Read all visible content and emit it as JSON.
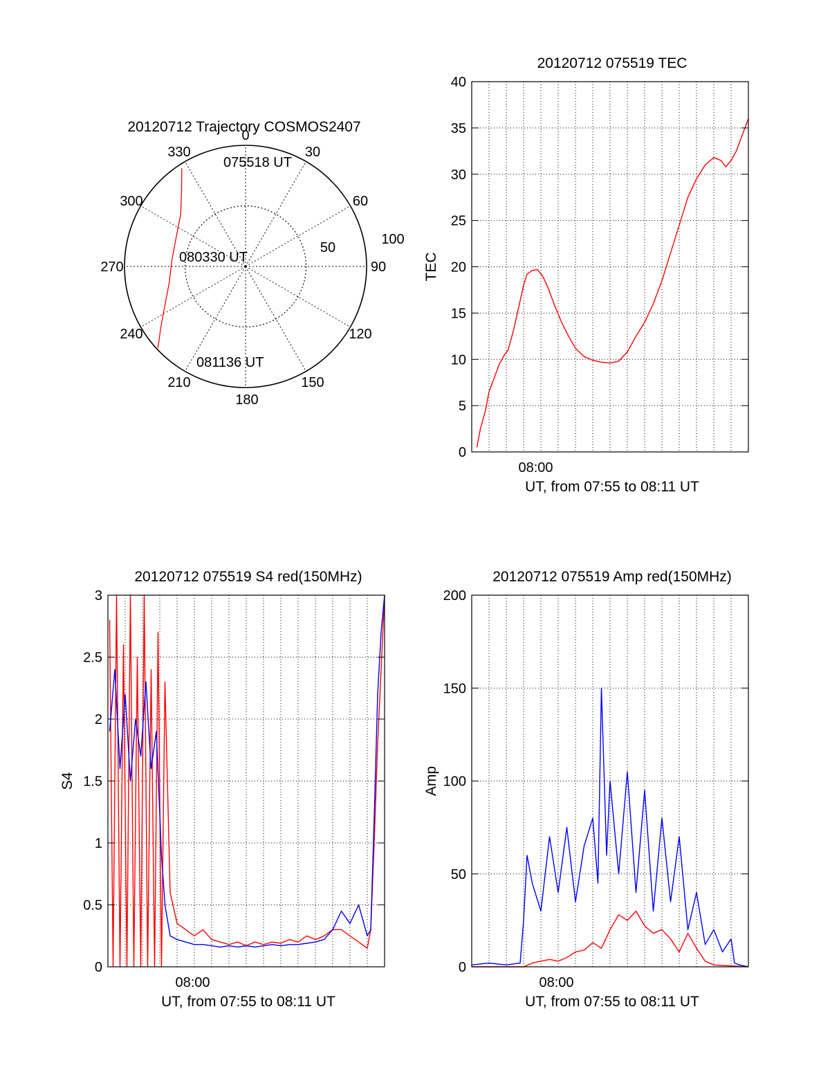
{
  "chart_data": [
    {
      "id": "polar",
      "type": "scatter",
      "subtype": "polar-trajectory",
      "title": "20120712 Trajectory COSMOS2407",
      "azimuth_labels": [
        "0",
        "30",
        "60",
        "90",
        "120",
        "150",
        "180",
        "210",
        "240",
        "270",
        "300",
        "330"
      ],
      "radial_labels": [
        "50",
        "100"
      ],
      "annotations": [
        "075518 UT",
        "080330 UT",
        "081136 UT"
      ],
      "trajectory_color": "#ff0000",
      "trajectory": [
        {
          "az": 327,
          "zen": 87
        },
        {
          "az": 320,
          "zen": 74
        },
        {
          "az": 309,
          "zen": 62
        },
        {
          "az": 293,
          "zen": 56
        },
        {
          "az": 275,
          "zen": 55
        },
        {
          "az": 258,
          "zen": 58
        },
        {
          "az": 245,
          "zen": 66
        },
        {
          "az": 234,
          "zen": 78
        },
        {
          "az": 227,
          "zen": 89
        }
      ]
    },
    {
      "id": "tec",
      "type": "line",
      "title": "20120712 075519 TEC",
      "xlabel": "UT, from 07:55 to 08:11 UT",
      "ylabel": "TEC",
      "xlim": [
        0,
        16
      ],
      "ylim": [
        0,
        40
      ],
      "yticks": [
        "0",
        "5",
        "10",
        "15",
        "20",
        "25",
        "30",
        "35",
        "40"
      ],
      "xtick_label": "08:00",
      "xtick_value": 3.7,
      "grid": true,
      "series": [
        {
          "color": "#ff0000",
          "x": [
            0.3,
            0.5,
            0.8,
            1.0,
            1.3,
            1.6,
            1.9,
            2.1,
            2.4,
            2.7,
            3.0,
            3.2,
            3.5,
            3.8,
            4.1,
            4.4,
            4.8,
            5.2,
            5.6,
            6.0,
            6.5,
            7.0,
            7.5,
            8.0,
            8.5,
            9.0,
            9.5,
            10.0,
            10.5,
            11.0,
            11.5,
            12.0,
            12.5,
            13.0,
            13.5,
            14.0,
            14.4,
            14.7,
            15.0,
            15.3,
            15.6,
            16.0
          ],
          "y": [
            0.5,
            2.5,
            4.5,
            6.5,
            8.0,
            9.5,
            10.5,
            11.0,
            13.0,
            15.5,
            18.0,
            19.2,
            19.6,
            19.7,
            19.0,
            17.8,
            15.8,
            14.0,
            12.5,
            11.2,
            10.3,
            9.9,
            9.7,
            9.6,
            9.8,
            10.8,
            12.5,
            14.0,
            16.0,
            18.5,
            21.5,
            24.5,
            27.5,
            29.5,
            31.0,
            31.8,
            31.5,
            30.8,
            31.5,
            32.5,
            34.0,
            36.0
          ]
        }
      ]
    },
    {
      "id": "s4",
      "type": "line",
      "title": "20120712 075519 S4 red(150MHz)",
      "xlabel": "UT, from 07:55 to 08:11 UT",
      "ylabel": "S4",
      "xlim": [
        0,
        16
      ],
      "ylim": [
        0,
        3
      ],
      "yticks": [
        "0",
        "0.5",
        "1",
        "1.5",
        "2",
        "2.5",
        "3"
      ],
      "xtick_label": "08:00",
      "xtick_value": 4.9,
      "grid": true,
      "series": [
        {
          "color": "#ff0000",
          "x": [
            0.1,
            0.3,
            0.5,
            0.7,
            0.9,
            1.1,
            1.3,
            1.5,
            1.7,
            1.9,
            2.1,
            2.3,
            2.5,
            2.7,
            2.9,
            3.1,
            3.3,
            3.6,
            4.0,
            4.5,
            5.0,
            5.5,
            6.0,
            6.5,
            7.0,
            7.5,
            8.0,
            8.5,
            9.0,
            9.5,
            10.0,
            10.5,
            11.0,
            11.5,
            12.0,
            12.5,
            13.0,
            13.5,
            14.0,
            14.5,
            15.0,
            15.2,
            15.4,
            15.6,
            15.8,
            16.0
          ],
          "y": [
            2.8,
            0.0,
            3.0,
            0.0,
            2.6,
            0.0,
            3.0,
            0.0,
            2.5,
            0.0,
            3.0,
            0.0,
            2.4,
            0.0,
            2.7,
            0.0,
            2.3,
            0.6,
            0.35,
            0.3,
            0.25,
            0.3,
            0.22,
            0.2,
            0.18,
            0.2,
            0.17,
            0.2,
            0.18,
            0.2,
            0.19,
            0.22,
            0.2,
            0.25,
            0.22,
            0.25,
            0.3,
            0.3,
            0.25,
            0.2,
            0.15,
            0.3,
            1.0,
            1.8,
            2.4,
            3.0
          ]
        },
        {
          "color": "#0000ff",
          "x": [
            0.1,
            0.4,
            0.7,
            1.0,
            1.3,
            1.6,
            1.9,
            2.2,
            2.5,
            2.8,
            3.1,
            3.3,
            3.6,
            4.0,
            4.5,
            5.0,
            5.5,
            6.0,
            6.5,
            7.0,
            7.5,
            8.0,
            8.5,
            9.0,
            9.5,
            10.0,
            10.5,
            11.0,
            11.5,
            12.0,
            12.5,
            13.0,
            13.5,
            14.0,
            14.5,
            15.0,
            15.2,
            15.4,
            15.6,
            15.8,
            16.0
          ],
          "y": [
            1.9,
            2.4,
            1.6,
            2.2,
            1.5,
            2.0,
            1.7,
            2.3,
            1.6,
            1.9,
            0.9,
            0.5,
            0.25,
            0.22,
            0.2,
            0.18,
            0.18,
            0.17,
            0.16,
            0.17,
            0.16,
            0.17,
            0.16,
            0.17,
            0.18,
            0.17,
            0.18,
            0.18,
            0.19,
            0.2,
            0.22,
            0.3,
            0.45,
            0.35,
            0.5,
            0.25,
            0.3,
            1.2,
            2.2,
            2.7,
            3.0
          ]
        }
      ]
    },
    {
      "id": "amp",
      "type": "line",
      "title": "20120712 075519 Amp red(150MHz)",
      "xlabel": "UT, from 07:55 to 08:11 UT",
      "ylabel": "Amp",
      "xlim": [
        0,
        16
      ],
      "ylim": [
        0,
        200
      ],
      "yticks": [
        "0",
        "50",
        "100",
        "150",
        "200"
      ],
      "xtick_label": "08:00",
      "xtick_value": 4.9,
      "grid": true,
      "series": [
        {
          "color": "#ff0000",
          "x": [
            0,
            3.0,
            3.5,
            4.0,
            4.5,
            5.0,
            5.5,
            6.0,
            6.5,
            7.0,
            7.5,
            8.0,
            8.5,
            9.0,
            9.5,
            10.0,
            10.5,
            11.0,
            11.5,
            12.0,
            12.5,
            13.0,
            13.5,
            14.0,
            16.0
          ],
          "y": [
            0,
            0,
            2,
            3,
            4,
            3,
            5,
            8,
            9,
            13,
            10,
            20,
            28,
            25,
            30,
            22,
            18,
            20,
            15,
            8,
            18,
            10,
            3,
            1,
            0
          ]
        },
        {
          "color": "#0000ff",
          "x": [
            0,
            1.0,
            2.0,
            2.8,
            3.0,
            3.2,
            3.5,
            4.0,
            4.5,
            5.0,
            5.5,
            6.0,
            6.5,
            7.0,
            7.3,
            7.5,
            7.8,
            8.0,
            8.5,
            9.0,
            9.5,
            10.0,
            10.5,
            11.0,
            11.5,
            12.0,
            12.5,
            13.0,
            13.5,
            14.0,
            14.5,
            15.0,
            15.2,
            15.5,
            16.0
          ],
          "y": [
            1,
            2,
            1,
            2,
            25,
            60,
            45,
            30,
            70,
            40,
            75,
            35,
            65,
            80,
            45,
            150,
            60,
            100,
            50,
            105,
            40,
            95,
            30,
            80,
            35,
            70,
            20,
            40,
            12,
            20,
            8,
            15,
            2,
            1,
            0
          ]
        }
      ]
    }
  ]
}
